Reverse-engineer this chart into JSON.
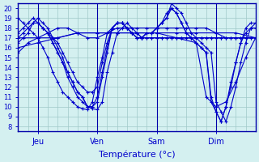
{
  "title": "",
  "xlabel": "Température (°c)",
  "ylabel": "",
  "background_color": "#d4f0f0",
  "line_color": "#0000cc",
  "grid_color": "#a0c8c8",
  "axis_color": "#0000aa",
  "yticks": [
    8,
    9,
    10,
    11,
    12,
    13,
    14,
    15,
    16,
    17,
    18,
    19,
    20
  ],
  "ylim": [
    7.5,
    20.5
  ],
  "xlim": [
    0,
    96
  ],
  "xtick_positions": [
    8,
    32,
    56,
    80
  ],
  "xtick_labels": [
    "Jeu",
    "Ven",
    "Sam",
    "Dim"
  ],
  "series": [
    {
      "x": [
        0,
        2,
        4,
        6,
        8,
        10,
        12,
        14,
        16,
        18,
        20,
        22,
        24,
        26,
        28,
        30,
        32,
        34,
        36,
        38,
        40,
        42,
        44,
        46,
        48,
        50,
        52,
        54,
        56,
        58,
        60,
        62,
        64,
        66,
        68,
        70,
        72,
        74,
        76,
        78,
        80,
        82,
        84,
        86,
        88,
        90,
        92,
        94,
        96
      ],
      "y": [
        19.0,
        18.5,
        18.0,
        17.5,
        17.0,
        16.0,
        15.0,
        13.5,
        12.5,
        11.5,
        11.0,
        10.5,
        10.0,
        9.8,
        9.7,
        10.5,
        13.0,
        15.0,
        17.5,
        18.0,
        18.5,
        18.5,
        18.0,
        17.5,
        17.5,
        17.0,
        17.0,
        17.0,
        17.0,
        17.0,
        17.0,
        17.0,
        17.0,
        17.0,
        17.0,
        17.0,
        17.0,
        17.0,
        17.0,
        17.0,
        17.0,
        17.0,
        17.0,
        17.0,
        17.0,
        17.0,
        17.0,
        17.0,
        17.0
      ]
    },
    {
      "x": [
        8,
        10,
        12,
        14,
        16,
        18,
        20,
        22,
        24,
        26,
        28,
        30,
        32,
        34,
        36,
        38,
        40,
        42,
        44,
        46,
        48,
        50,
        52,
        54,
        56,
        58,
        60,
        62,
        64,
        66,
        68,
        70,
        72,
        74,
        76,
        78,
        80,
        82,
        84,
        86,
        88,
        90,
        92,
        94,
        96
      ],
      "y": [
        18.5,
        18.0,
        17.5,
        16.5,
        15.5,
        14.5,
        13.5,
        12.5,
        11.5,
        11.0,
        10.0,
        9.8,
        9.7,
        10.5,
        13.5,
        15.5,
        17.5,
        18.0,
        18.5,
        18.0,
        17.5,
        17.0,
        17.0,
        17.0,
        17.0,
        17.0,
        17.0,
        17.0,
        17.0,
        17.0,
        17.0,
        17.0,
        17.0,
        17.0,
        17.0,
        17.0,
        17.0,
        17.0,
        17.0,
        17.0,
        17.0,
        17.0,
        17.0,
        17.0,
        17.0
      ]
    },
    {
      "x": [
        0,
        2,
        4,
        6,
        8,
        10,
        12,
        14,
        16,
        18,
        20,
        22,
        24,
        26,
        28,
        30,
        32,
        34,
        36,
        38,
        40,
        42,
        44,
        46,
        48,
        50,
        52,
        54,
        56,
        58,
        60,
        62,
        64,
        66,
        68,
        70,
        72,
        74,
        76,
        78,
        80,
        82,
        84,
        86,
        88,
        90,
        92,
        94,
        96
      ],
      "y": [
        16.5,
        17.0,
        17.5,
        18.5,
        19.0,
        18.5,
        18.0,
        17.0,
        16.0,
        15.0,
        13.5,
        12.5,
        11.5,
        11.0,
        10.0,
        10.0,
        10.5,
        13.0,
        15.5,
        18.0,
        18.5,
        18.5,
        18.0,
        17.5,
        17.0,
        17.0,
        17.5,
        17.5,
        18.0,
        18.5,
        19.0,
        20.5,
        20.0,
        19.5,
        18.5,
        17.5,
        17.0,
        16.5,
        16.0,
        15.5,
        10.5,
        9.5,
        8.5,
        10.0,
        12.0,
        14.5,
        16.5,
        18.0,
        18.5
      ]
    },
    {
      "x": [
        0,
        2,
        4,
        6,
        8,
        10,
        12,
        14,
        16,
        18,
        20,
        22,
        24,
        26,
        28,
        30,
        32,
        34,
        36,
        38,
        40,
        42,
        44,
        46,
        48,
        50,
        52,
        54,
        56,
        58,
        60,
        62,
        64,
        66,
        68,
        70,
        72,
        74,
        76,
        78,
        80,
        82,
        84,
        86,
        88,
        90,
        92,
        94,
        96
      ],
      "y": [
        17.5,
        18.0,
        18.5,
        19.0,
        18.5,
        18.0,
        17.5,
        16.5,
        15.5,
        14.5,
        13.0,
        12.0,
        11.0,
        10.5,
        10.0,
        10.0,
        11.0,
        13.5,
        16.0,
        18.0,
        18.5,
        18.5,
        18.0,
        17.5,
        17.0,
        17.0,
        17.5,
        17.5,
        18.0,
        18.5,
        19.0,
        20.0,
        19.5,
        18.5,
        17.5,
        17.0,
        16.5,
        16.0,
        15.5,
        10.5,
        9.5,
        8.5,
        10.0,
        12.0,
        14.5,
        16.5,
        18.0,
        18.5,
        18.5
      ]
    },
    {
      "x": [
        0,
        2,
        4,
        6,
        8,
        10,
        12,
        14,
        16,
        18,
        20,
        22,
        24,
        26,
        28,
        30,
        32,
        34,
        36,
        38,
        40,
        42,
        44,
        46,
        48,
        50,
        52,
        54,
        56,
        58,
        60,
        62,
        64,
        66,
        68,
        70,
        72,
        74,
        76,
        78,
        80,
        82,
        84,
        86,
        88,
        90,
        92,
        94,
        96
      ],
      "y": [
        17.0,
        17.5,
        18.0,
        18.5,
        18.5,
        18.0,
        17.5,
        17.0,
        16.5,
        15.5,
        14.5,
        13.5,
        12.5,
        12.0,
        11.5,
        11.5,
        12.0,
        14.5,
        16.5,
        18.0,
        18.5,
        18.5,
        18.0,
        17.5,
        17.0,
        17.0,
        17.5,
        17.5,
        18.0,
        18.5,
        19.5,
        20.0,
        19.5,
        18.5,
        17.5,
        17.0,
        16.5,
        16.0,
        15.5,
        11.0,
        9.5,
        8.5,
        10.0,
        12.5,
        14.5,
        16.5,
        17.5,
        18.0,
        18.0
      ]
    },
    {
      "x": [
        0,
        4,
        8,
        12,
        16,
        20,
        24,
        28,
        32,
        36,
        40,
        44,
        48,
        52,
        56,
        60,
        64,
        68,
        72,
        76,
        80,
        84,
        88,
        92,
        96
      ],
      "y": [
        15.5,
        16.5,
        17.0,
        17.5,
        18.0,
        18.0,
        17.5,
        17.0,
        17.0,
        17.5,
        18.0,
        18.0,
        18.0,
        18.0,
        18.0,
        18.0,
        18.0,
        18.0,
        18.0,
        18.0,
        17.5,
        17.0,
        17.0,
        17.0,
        17.0
      ]
    },
    {
      "x": [
        0,
        8,
        16,
        24,
        32,
        40,
        48,
        56,
        64,
        72,
        80,
        88,
        96
      ],
      "y": [
        16.0,
        16.5,
        17.0,
        17.5,
        17.5,
        17.5,
        17.5,
        17.5,
        17.5,
        17.5,
        17.5,
        17.5,
        17.0
      ]
    },
    {
      "x": [
        0,
        8,
        16,
        24,
        32,
        40,
        48,
        56,
        64,
        72,
        76,
        80,
        84,
        88,
        92,
        96
      ],
      "y": [
        17.0,
        17.0,
        17.0,
        17.5,
        17.5,
        17.5,
        17.5,
        17.5,
        17.0,
        16.5,
        11.0,
        10.0,
        10.5,
        12.5,
        15.0,
        17.0
      ]
    }
  ]
}
